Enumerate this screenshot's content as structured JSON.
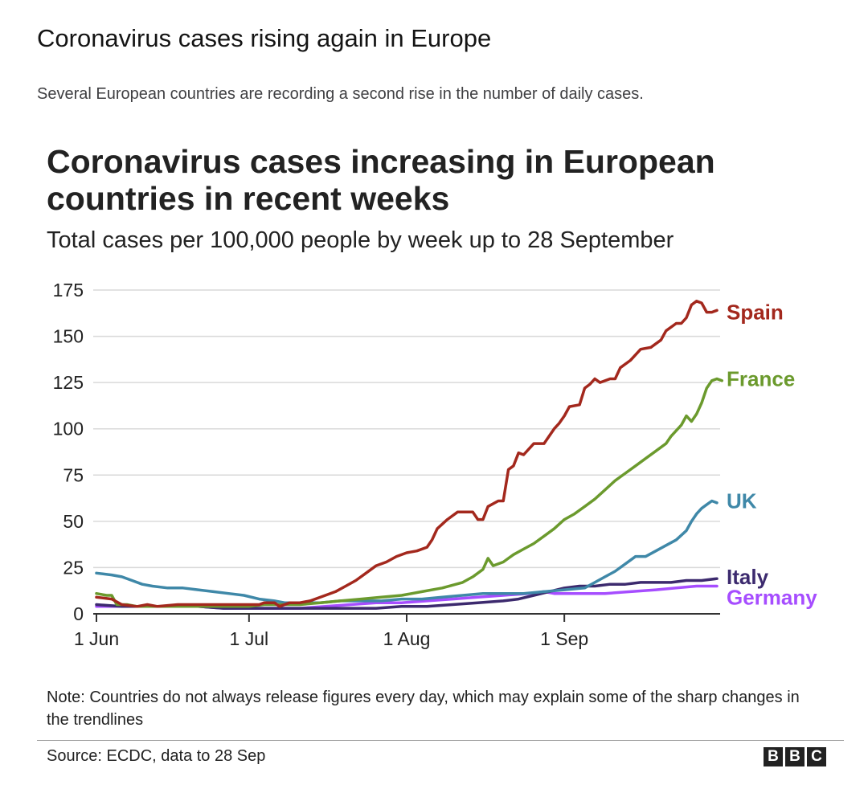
{
  "header": {
    "title": "Coronavirus cases rising again in Europe",
    "subtitle": "Several European countries are recording a second rise in the number of daily cases."
  },
  "chart_data": {
    "type": "line",
    "title": "Coronavirus cases increasing in European countries in recent weeks",
    "subtitle": "Total cases per 100,000 people by week up to 28 September",
    "xlabel": "",
    "ylabel": "",
    "ylim": [
      0,
      175
    ],
    "yticks": [
      0,
      25,
      50,
      75,
      100,
      125,
      150,
      175
    ],
    "xticks": [
      {
        "label": "1 Jun",
        "day": 0
      },
      {
        "label": "1 Jul",
        "day": 30
      },
      {
        "label": "1 Aug",
        "day": 61
      },
      {
        "label": "1 Sep",
        "day": 92
      }
    ],
    "xlim_days": [
      0,
      119
    ],
    "grid": "horizontal",
    "legend": "line-end labels",
    "series": [
      {
        "name": "Spain",
        "color": "#a3281d",
        "points": [
          [
            0,
            9
          ],
          [
            3,
            8
          ],
          [
            5,
            5
          ],
          [
            8,
            4
          ],
          [
            10,
            5
          ],
          [
            12,
            4
          ],
          [
            16,
            5
          ],
          [
            20,
            5
          ],
          [
            24,
            5
          ],
          [
            28,
            5
          ],
          [
            32,
            5
          ],
          [
            33,
            6
          ],
          [
            35,
            6
          ],
          [
            36,
            4
          ],
          [
            38,
            6
          ],
          [
            40,
            6
          ],
          [
            42,
            7
          ],
          [
            43,
            8
          ],
          [
            45,
            10
          ],
          [
            47,
            12
          ],
          [
            49,
            15
          ],
          [
            51,
            18
          ],
          [
            53,
            22
          ],
          [
            55,
            26
          ],
          [
            57,
            28
          ],
          [
            59,
            31
          ],
          [
            61,
            33
          ],
          [
            63,
            34
          ],
          [
            65,
            36
          ],
          [
            66,
            40
          ],
          [
            67,
            46
          ],
          [
            69,
            51
          ],
          [
            71,
            55
          ],
          [
            74,
            55
          ],
          [
            75,
            51
          ],
          [
            76,
            51
          ],
          [
            77,
            58
          ],
          [
            79,
            61
          ],
          [
            80,
            61
          ],
          [
            81,
            78
          ],
          [
            82,
            80
          ],
          [
            83,
            87
          ],
          [
            84,
            86
          ],
          [
            86,
            92
          ],
          [
            88,
            92
          ],
          [
            90,
            100
          ],
          [
            91,
            103
          ],
          [
            92,
            107
          ],
          [
            93,
            112
          ],
          [
            95,
            113
          ],
          [
            96,
            122
          ],
          [
            97,
            124
          ],
          [
            98,
            127
          ],
          [
            99,
            125
          ],
          [
            101,
            127
          ],
          [
            102,
            127
          ],
          [
            103,
            133
          ],
          [
            105,
            137
          ],
          [
            106,
            140
          ],
          [
            107,
            143
          ],
          [
            109,
            144
          ],
          [
            111,
            148
          ],
          [
            112,
            153
          ],
          [
            114,
            157
          ],
          [
            115,
            157
          ],
          [
            116,
            160
          ],
          [
            117,
            167
          ],
          [
            118,
            169
          ],
          [
            119,
            168
          ],
          [
            120,
            163
          ],
          [
            121,
            163
          ],
          [
            122,
            164
          ]
        ]
      },
      {
        "name": "France",
        "color": "#6b9a2d",
        "points": [
          [
            0,
            11
          ],
          [
            2,
            10
          ],
          [
            3,
            10
          ],
          [
            4,
            5
          ],
          [
            6,
            5
          ],
          [
            8,
            4
          ],
          [
            10,
            4
          ],
          [
            14,
            4
          ],
          [
            20,
            4
          ],
          [
            26,
            4
          ],
          [
            30,
            4
          ],
          [
            33,
            5
          ],
          [
            36,
            5
          ],
          [
            40,
            5
          ],
          [
            44,
            6
          ],
          [
            48,
            7
          ],
          [
            52,
            8
          ],
          [
            56,
            9
          ],
          [
            60,
            10
          ],
          [
            64,
            12
          ],
          [
            68,
            14
          ],
          [
            72,
            17
          ],
          [
            74,
            20
          ],
          [
            76,
            24
          ],
          [
            77,
            30
          ],
          [
            78,
            26
          ],
          [
            80,
            28
          ],
          [
            82,
            32
          ],
          [
            84,
            35
          ],
          [
            86,
            38
          ],
          [
            88,
            42
          ],
          [
            90,
            46
          ],
          [
            92,
            51
          ],
          [
            94,
            54
          ],
          [
            96,
            58
          ],
          [
            98,
            62
          ],
          [
            100,
            67
          ],
          [
            102,
            72
          ],
          [
            104,
            76
          ],
          [
            106,
            80
          ],
          [
            107,
            82
          ],
          [
            108,
            84
          ],
          [
            110,
            88
          ],
          [
            112,
            92
          ],
          [
            113,
            96
          ],
          [
            115,
            102
          ],
          [
            116,
            107
          ],
          [
            117,
            104
          ],
          [
            118,
            108
          ],
          [
            119,
            114
          ],
          [
            120,
            122
          ],
          [
            121,
            126
          ],
          [
            122,
            127
          ],
          [
            123,
            126
          ]
        ]
      },
      {
        "name": "UK",
        "color": "#3f88a8",
        "points": [
          [
            0,
            22
          ],
          [
            3,
            21
          ],
          [
            5,
            20
          ],
          [
            7,
            18
          ],
          [
            9,
            16
          ],
          [
            11,
            15
          ],
          [
            14,
            14
          ],
          [
            17,
            14
          ],
          [
            20,
            13
          ],
          [
            23,
            12
          ],
          [
            26,
            11
          ],
          [
            29,
            10
          ],
          [
            32,
            8
          ],
          [
            35,
            7
          ],
          [
            37,
            6
          ],
          [
            40,
            6
          ],
          [
            44,
            6
          ],
          [
            48,
            7
          ],
          [
            52,
            7
          ],
          [
            56,
            7
          ],
          [
            60,
            8
          ],
          [
            64,
            8
          ],
          [
            68,
            9
          ],
          [
            72,
            10
          ],
          [
            76,
            11
          ],
          [
            80,
            11
          ],
          [
            84,
            11
          ],
          [
            88,
            12
          ],
          [
            92,
            13
          ],
          [
            96,
            14
          ],
          [
            98,
            17
          ],
          [
            100,
            20
          ],
          [
            102,
            23
          ],
          [
            104,
            27
          ],
          [
            106,
            31
          ],
          [
            108,
            31
          ],
          [
            110,
            34
          ],
          [
            112,
            37
          ],
          [
            114,
            40
          ],
          [
            116,
            45
          ],
          [
            117,
            50
          ],
          [
            118,
            54
          ],
          [
            119,
            57
          ],
          [
            120,
            59
          ],
          [
            121,
            61
          ],
          [
            122,
            60
          ]
        ]
      },
      {
        "name": "Italy",
        "color": "#3c2a6e",
        "points": [
          [
            0,
            5
          ],
          [
            5,
            4
          ],
          [
            10,
            4
          ],
          [
            15,
            4
          ],
          [
            20,
            4
          ],
          [
            25,
            3
          ],
          [
            30,
            3
          ],
          [
            35,
            3
          ],
          [
            40,
            3
          ],
          [
            45,
            3
          ],
          [
            50,
            3
          ],
          [
            55,
            3
          ],
          [
            60,
            4
          ],
          [
            65,
            4
          ],
          [
            70,
            5
          ],
          [
            75,
            6
          ],
          [
            80,
            7
          ],
          [
            83,
            8
          ],
          [
            86,
            10
          ],
          [
            89,
            12
          ],
          [
            92,
            14
          ],
          [
            95,
            15
          ],
          [
            98,
            15
          ],
          [
            101,
            16
          ],
          [
            104,
            16
          ],
          [
            107,
            17
          ],
          [
            110,
            17
          ],
          [
            113,
            17
          ],
          [
            116,
            18
          ],
          [
            119,
            18
          ],
          [
            122,
            19
          ]
        ]
      },
      {
        "name": "Germany",
        "color": "#a64dff",
        "points": [
          [
            0,
            4
          ],
          [
            5,
            4
          ],
          [
            10,
            4
          ],
          [
            15,
            4
          ],
          [
            20,
            4
          ],
          [
            25,
            3
          ],
          [
            30,
            3
          ],
          [
            35,
            3
          ],
          [
            40,
            3
          ],
          [
            45,
            4
          ],
          [
            50,
            5
          ],
          [
            55,
            6
          ],
          [
            60,
            6
          ],
          [
            65,
            7
          ],
          [
            70,
            8
          ],
          [
            75,
            9
          ],
          [
            80,
            10
          ],
          [
            85,
            11
          ],
          [
            88,
            12
          ],
          [
            90,
            11
          ],
          [
            95,
            11
          ],
          [
            100,
            11
          ],
          [
            105,
            12
          ],
          [
            110,
            13
          ],
          [
            114,
            14
          ],
          [
            118,
            15
          ],
          [
            122,
            15
          ]
        ]
      }
    ],
    "note": "Note: Countries do not always release figures every day, which may explain some of the sharp changes in the trendlines"
  },
  "footer": {
    "source": "Source: ECDC, data to 28 Sep",
    "logo_letters": [
      "B",
      "B",
      "C"
    ]
  },
  "colors": {
    "text": "#222222",
    "grid": "#d9d9d9",
    "axis": "#333333"
  }
}
